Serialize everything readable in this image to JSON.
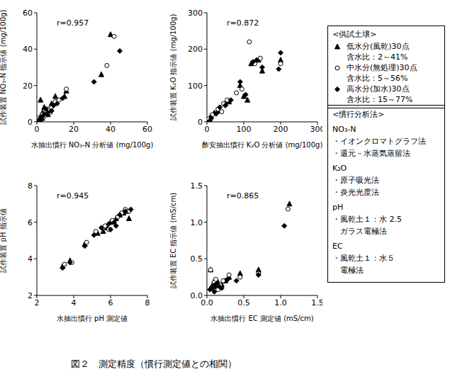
{
  "chart_data": [
    {
      "type": "scatter",
      "annotation": "r=0.957",
      "x_label": "水抽出慣行 NO₃-N 分析値 (mg/100g)",
      "y_label": "試作装置 NO₃-N 指示値 (mg/100g)",
      "xlim": [
        0,
        60
      ],
      "xticks": [
        0,
        20,
        40,
        60
      ],
      "ylim": [
        0,
        60
      ],
      "yticks": [
        0,
        20,
        40,
        60
      ],
      "grid": false,
      "series": [
        {
          "name": "低水分(風乾)30点",
          "marker": "triangle",
          "color": "#000000",
          "x": [
            1,
            2,
            3,
            2,
            4,
            5,
            8,
            10,
            6,
            15,
            16,
            35,
            40,
            1,
            3
          ],
          "values": [
            1,
            3,
            2,
            12,
            8,
            6,
            10,
            14,
            4,
            14,
            17,
            26,
            48,
            0.5,
            5
          ]
        },
        {
          "name": "中水分(無処理)30点",
          "marker": "open_circle",
          "color": "#000000",
          "x": [
            1,
            2,
            3,
            5,
            6,
            8,
            10,
            12,
            16,
            38,
            42,
            4,
            7
          ],
          "values": [
            2,
            1,
            4,
            6,
            7,
            8,
            11,
            12,
            18,
            31,
            47,
            3,
            5
          ]
        },
        {
          "name": "高水分(加水)30点",
          "marker": "diamond",
          "color": "#000000",
          "x": [
            1,
            2,
            3,
            4,
            5,
            6,
            9,
            11,
            14,
            31,
            45,
            2,
            8
          ],
          "values": [
            1,
            2,
            3,
            4,
            7,
            5,
            9,
            10,
            13,
            22,
            39,
            0.5,
            6
          ]
        }
      ]
    },
    {
      "type": "scatter",
      "annotation": "r=0.872",
      "x_label": "酢安抽出慣行 K₂O 分析値 (mg/100g)",
      "y_label": "試作装置 K₂O 指示値 (mg/100g)",
      "xlim": [
        0,
        300
      ],
      "xticks": [
        0,
        100,
        200,
        300
      ],
      "ylim": [
        0,
        300
      ],
      "yticks": [
        0,
        100,
        200,
        300
      ],
      "grid": false,
      "series": [
        {
          "name": "低水分(風乾)30点",
          "marker": "triangle",
          "color": "#000000",
          "x": [
            5,
            10,
            20,
            30,
            50,
            60,
            90,
            100,
            110,
            120,
            140,
            150,
            200
          ],
          "values": [
            5,
            15,
            25,
            30,
            50,
            55,
            100,
            70,
            60,
            160,
            170,
            140,
            170
          ]
        },
        {
          "name": "中水分(無処理)30点",
          "marker": "open_circle",
          "color": "#000000",
          "x": [
            5,
            15,
            30,
            45,
            55,
            80,
            95,
            115,
            130,
            145,
            200,
            40
          ],
          "values": [
            8,
            20,
            35,
            50,
            60,
            80,
            90,
            220,
            160,
            175,
            160,
            28
          ]
        },
        {
          "name": "高水分(加水)30点",
          "marker": "diamond",
          "color": "#000000",
          "x": [
            8,
            12,
            25,
            35,
            50,
            65,
            90,
            105,
            125,
            135,
            150,
            200,
            195
          ],
          "values": [
            3,
            10,
            22,
            40,
            45,
            60,
            110,
            75,
            165,
            170,
            150,
            190,
            145
          ]
        }
      ]
    },
    {
      "type": "scatter",
      "annotation": "r=0.945",
      "x_label": "水抽出慣行 pH 測定値",
      "y_label": "試作装置 pH 指示値",
      "xlim": [
        2,
        8
      ],
      "xticks": [
        2,
        4,
        6,
        8
      ],
      "ylim": [
        2,
        8
      ],
      "yticks": [
        2,
        4,
        6,
        8
      ],
      "grid": false,
      "series": [
        {
          "name": "低水分(風乾)30点",
          "marker": "triangle",
          "color": "#000000",
          "x": [
            3.4,
            3.8,
            4.6,
            5.3,
            5.8,
            6.0,
            6.3,
            6.5,
            6.7,
            6.9,
            7.0,
            5.6
          ],
          "values": [
            3.6,
            3.9,
            4.8,
            5.4,
            5.7,
            6.0,
            6.2,
            6.4,
            6.5,
            6.6,
            6.2,
            5.5
          ]
        },
        {
          "name": "中水分(無処理)30点",
          "marker": "open_circle",
          "color": "#000000",
          "x": [
            3.5,
            3.9,
            4.7,
            5.2,
            5.7,
            6.1,
            6.4,
            6.6,
            6.8,
            7.0,
            5.9
          ],
          "values": [
            3.7,
            3.8,
            4.9,
            5.5,
            5.8,
            6.1,
            6.3,
            6.5,
            6.7,
            6.6,
            5.6
          ]
        },
        {
          "name": "高水分(加水)30点",
          "marker": "diamond",
          "color": "#000000",
          "x": [
            3.4,
            3.8,
            4.6,
            5.1,
            5.5,
            5.9,
            6.2,
            6.5,
            6.8,
            7.1,
            6.0,
            6.3
          ],
          "values": [
            3.5,
            3.8,
            4.7,
            5.3,
            5.7,
            5.9,
            6.0,
            6.4,
            6.6,
            6.7,
            5.6,
            5.8
          ]
        }
      ]
    },
    {
      "type": "scatter",
      "annotation": "r=0.865",
      "x_label": "水抽出慣行 EC 測定値 (mS/cm)",
      "y_label": "試作装置 EC 指示値 (mS/cm)",
      "xlim": [
        0,
        1.5
      ],
      "xticks": [
        {
          "value": 0,
          "label": "0.0"
        },
        0.5,
        {
          "value": 1,
          "label": "1.0"
        },
        1.5
      ],
      "ylim": [
        0,
        1.5
      ],
      "yticks": [
        {
          "value": 0,
          "label": "0.0"
        },
        0.5,
        {
          "value": 1,
          "label": "1.0"
        },
        1.5
      ],
      "grid": false,
      "series": [
        {
          "name": "低水分(風乾)30点",
          "marker": "triangle",
          "color": "#000000",
          "x": [
            0.05,
            0.08,
            0.1,
            0.12,
            0.15,
            0.2,
            0.25,
            0.3,
            0.45,
            0.7,
            1.12,
            0.05
          ],
          "values": [
            0.1,
            0.15,
            0.2,
            0.12,
            0.18,
            0.15,
            0.2,
            0.25,
            0.3,
            0.35,
            1.25,
            0.35
          ]
        },
        {
          "name": "中水分(無処理)30点",
          "marker": "open_circle",
          "color": "#000000",
          "x": [
            0.05,
            0.08,
            0.1,
            0.12,
            0.18,
            0.22,
            0.3,
            0.45,
            0.7,
            1.1,
            0.15
          ],
          "values": [
            0.35,
            0.12,
            0.18,
            0.22,
            0.14,
            0.2,
            0.28,
            0.25,
            0.3,
            1.18,
            0.08
          ]
        },
        {
          "name": "高水分(加水)30点",
          "marker": "diamond",
          "color": "#000000",
          "x": [
            0.04,
            0.07,
            0.1,
            0.13,
            0.17,
            0.2,
            0.28,
            0.4,
            0.7,
            1.05,
            0.1
          ],
          "values": [
            0.08,
            0.1,
            0.14,
            0.16,
            0.12,
            0.1,
            0.22,
            0.2,
            0.28,
            0.95,
            0.05
          ]
        }
      ]
    }
  ],
  "soil_legend": {
    "title": "<供試土壌>",
    "details": [
      "含水比：2～41%",
      "含水比：5～56%",
      "含水比：15～77%"
    ]
  },
  "methods_box": {
    "title": "<慣行分析法>",
    "groups": [
      {
        "label": "NO₃-N",
        "items": [
          "・イオンクロマトグラフ法",
          "・還元－水蒸気蒸留法"
        ]
      },
      {
        "label": "K₂O",
        "items": [
          "・原子吸光法",
          "・炎光光度法"
        ]
      },
      {
        "label": "pH",
        "items": [
          "・風乾土１：水 2.5",
          "　ガラス電極法"
        ]
      },
      {
        "label": "EC",
        "items": [
          "・風乾土１：水５",
          "　電極法"
        ]
      }
    ]
  },
  "caption": "図２　測定精度（慣行測定値との相関）"
}
